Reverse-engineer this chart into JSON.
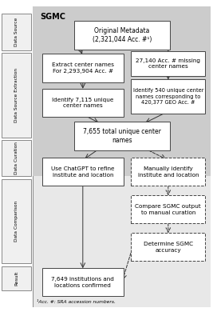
{
  "title": "SGMC",
  "bg_main": "#e8e8e8",
  "bg_top": "#d8d8d8",
  "bg_white": "#ffffff",
  "footnote": "¹Acc. #: SRA accession numbers.",
  "sidebar": [
    {
      "label": "Data Source",
      "ymin": 0.855,
      "ymax": 0.975
    },
    {
      "label": "Data Source Extraction",
      "ymin": 0.565,
      "ymax": 0.845
    },
    {
      "label": "Data Curation",
      "ymin": 0.435,
      "ymax": 0.555
    },
    {
      "label": "Data Comparison",
      "ymin": 0.145,
      "ymax": 0.425
    },
    {
      "label": "Result",
      "ymin": 0.055,
      "ymax": 0.135
    }
  ]
}
